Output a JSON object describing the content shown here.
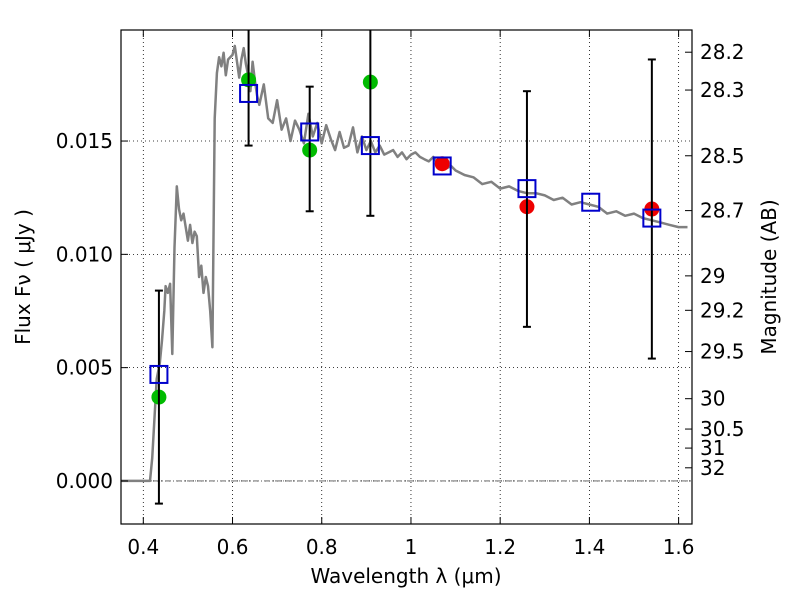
{
  "chart_data": {
    "type": "scatter",
    "title": "",
    "xlabel": "Wavelength  λ (μm)",
    "ylabel": "Flux  Fν  ( μJy )",
    "y2label": "Magnitude (AB)",
    "xlim": [
      0.35,
      1.63
    ],
    "ylim": [
      -0.0019,
      0.0199
    ],
    "grid": true,
    "x_ticks": [
      0.4,
      0.6,
      0.8,
      1.0,
      1.2,
      1.4,
      1.6
    ],
    "x_tick_labels": [
      "0.4",
      "0.6",
      "0.8",
      "1",
      "1.2",
      "1.4",
      "1.6"
    ],
    "y_ticks": [
      0.0,
      0.005,
      0.01,
      0.015
    ],
    "y_tick_labels": [
      "0.000",
      "0.005",
      "0.010",
      "0.015"
    ],
    "mag_ticks": [
      {
        "label": "28.2",
        "flux": 0.01892
      },
      {
        "label": "28.3",
        "flux": 0.01725
      },
      {
        "label": "28.5",
        "flux": 0.01435
      },
      {
        "label": "28.7",
        "flux": 0.01193
      },
      {
        "label": "29",
        "flux": 0.00905
      },
      {
        "label": "29.2",
        "flux": 0.00753
      },
      {
        "label": "29.5",
        "flux": 0.00571
      },
      {
        "label": "30",
        "flux": 0.00363
      },
      {
        "label": "30.5",
        "flux": 0.00229
      },
      {
        "label": "31",
        "flux": 0.00145
      },
      {
        "label": "32",
        "flux": 0.00058
      }
    ],
    "series": [
      {
        "kind": "line",
        "color": "#808080",
        "x": [
          0.35,
          0.41,
          0.415,
          0.42,
          0.43,
          0.437,
          0.442,
          0.447,
          0.45,
          0.455,
          0.46,
          0.465,
          0.47,
          0.475,
          0.48,
          0.485,
          0.49,
          0.495,
          0.5,
          0.505,
          0.51,
          0.515,
          0.52,
          0.525,
          0.53,
          0.535,
          0.54,
          0.545,
          0.55,
          0.555,
          0.56,
          0.565,
          0.57,
          0.575,
          0.58,
          0.585,
          0.59,
          0.6,
          0.605,
          0.61,
          0.615,
          0.62,
          0.625,
          0.63,
          0.635,
          0.64,
          0.645,
          0.65,
          0.655,
          0.66,
          0.67,
          0.68,
          0.69,
          0.7,
          0.71,
          0.72,
          0.73,
          0.74,
          0.75,
          0.76,
          0.77,
          0.78,
          0.79,
          0.8,
          0.81,
          0.82,
          0.83,
          0.84,
          0.85,
          0.86,
          0.87,
          0.88,
          0.89,
          0.9,
          0.91,
          0.92,
          0.93,
          0.94,
          0.95,
          0.96,
          0.97,
          0.98,
          0.99,
          1.0,
          1.01,
          1.02,
          1.03,
          1.04,
          1.05,
          1.06,
          1.07,
          1.08,
          1.09,
          1.1,
          1.12,
          1.14,
          1.16,
          1.18,
          1.2,
          1.22,
          1.24,
          1.26,
          1.28,
          1.3,
          1.32,
          1.34,
          1.36,
          1.38,
          1.4,
          1.42,
          1.44,
          1.46,
          1.48,
          1.5,
          1.52,
          1.54,
          1.56,
          1.58,
          1.6,
          1.62
        ],
        "y": [
          0.0,
          0.0,
          0.0,
          0.001,
          0.0045,
          0.0052,
          0.0062,
          0.0075,
          0.0086,
          0.0083,
          0.0087,
          0.0056,
          0.0103,
          0.013,
          0.012,
          0.0115,
          0.0118,
          0.0112,
          0.0106,
          0.0113,
          0.0105,
          0.011,
          0.0108,
          0.009,
          0.0095,
          0.0083,
          0.009,
          0.0086,
          0.0075,
          0.0059,
          0.016,
          0.018,
          0.0187,
          0.0183,
          0.0189,
          0.0179,
          0.0186,
          0.0188,
          0.0192,
          0.0185,
          0.0178,
          0.0186,
          0.0191,
          0.0184,
          0.0179,
          0.0172,
          0.0185,
          0.0177,
          0.017,
          0.0166,
          0.0175,
          0.016,
          0.0158,
          0.0168,
          0.0155,
          0.016,
          0.015,
          0.0159,
          0.0155,
          0.0149,
          0.0162,
          0.0152,
          0.0158,
          0.0149,
          0.0157,
          0.0151,
          0.0146,
          0.0154,
          0.0147,
          0.0148,
          0.0156,
          0.0145,
          0.0152,
          0.0146,
          0.015,
          0.0145,
          0.0148,
          0.0144,
          0.0145,
          0.0146,
          0.0143,
          0.0145,
          0.0142,
          0.0144,
          0.0145,
          0.0143,
          0.0142,
          0.0141,
          0.0143,
          0.014,
          0.0141,
          0.0138,
          0.0139,
          0.0137,
          0.0135,
          0.0134,
          0.0131,
          0.0132,
          0.0129,
          0.013,
          0.0128,
          0.0127,
          0.0127,
          0.0126,
          0.0124,
          0.0125,
          0.0122,
          0.0123,
          0.0122,
          0.0121,
          0.0118,
          0.0119,
          0.0117,
          0.0118,
          0.0116,
          0.0115,
          0.0114,
          0.0113,
          0.0112,
          0.0112
        ]
      },
      {
        "kind": "points",
        "marker": "circle",
        "color": "#00bb00",
        "x": [
          0.435,
          0.636,
          0.773,
          0.909
        ],
        "y": [
          0.0037,
          0.0177,
          0.0146,
          0.0176
        ]
      },
      {
        "kind": "points",
        "marker": "circle",
        "color": "#ee0000",
        "x": [
          1.07,
          1.26,
          1.54
        ],
        "y": [
          0.014,
          0.0121,
          0.012
        ]
      },
      {
        "kind": "errorbars",
        "color": "#000000",
        "x": [
          0.435,
          0.636,
          0.773,
          0.909,
          1.26,
          1.54
        ],
        "ylow": [
          -0.001,
          0.0148,
          0.0119,
          0.0117,
          0.0068,
          0.0054
        ],
        "yhigh": [
          0.0084,
          0.0205,
          0.0174,
          0.0205,
          0.0172,
          0.0186
        ]
      },
      {
        "kind": "points",
        "marker": "square",
        "color": "#0000cc",
        "x": [
          0.435,
          0.636,
          0.773,
          0.909,
          1.07,
          1.26,
          1.403,
          1.54
        ],
        "y": [
          0.0047,
          0.0171,
          0.0154,
          0.0148,
          0.0139,
          0.0129,
          0.0123,
          0.0116
        ]
      }
    ]
  }
}
